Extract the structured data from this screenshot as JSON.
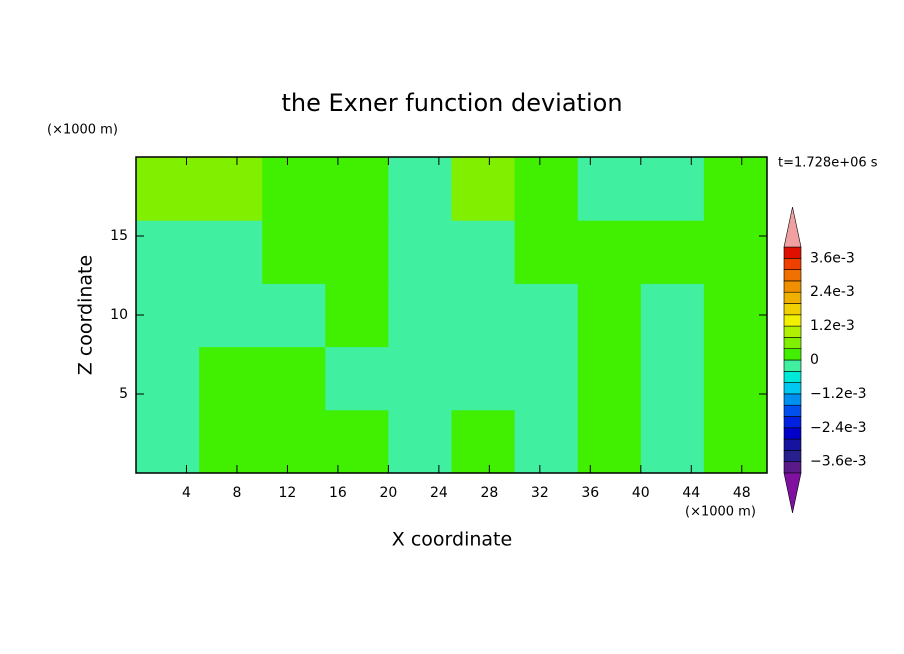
{
  "chart_data": {
    "type": "contour",
    "title": "the Exner function deviation",
    "x_label": "X coordinate",
    "y_label": "Z coordinate",
    "x_unit": "(×1000 m)",
    "y_unit": "(×1000 m)",
    "time_label": "t=1.728e+06 s",
    "xlim": [
      0,
      50
    ],
    "ylim": [
      0,
      20
    ],
    "xticks": [
      4,
      8,
      12,
      16,
      20,
      24,
      28,
      32,
      36,
      40,
      44,
      48
    ],
    "yticks": [
      5,
      10,
      15
    ],
    "x": [
      2.5,
      7.5,
      12.5,
      17.5,
      22.5,
      27.5,
      32.5,
      37.5,
      42.5,
      47.5
    ],
    "y": [
      2,
      6,
      10,
      14,
      18
    ],
    "z": [
      [
        -0.0002,
        0.0002,
        0.0002,
        0.0002,
        -0.0002,
        0.0002,
        -0.0002,
        0.0002,
        -0.0002,
        0.0002
      ],
      [
        -0.0002,
        0.0002,
        0.0002,
        -0.0002,
        -0.0002,
        -0.0002,
        -0.0002,
        0.0002,
        -0.0002,
        0.0002
      ],
      [
        -0.0002,
        -0.0002,
        -0.0002,
        0.0002,
        -0.0002,
        -0.0002,
        -0.0002,
        0.0002,
        -0.0002,
        0.0002
      ],
      [
        -0.0002,
        -0.0002,
        0.0002,
        0.0002,
        -0.0002,
        -0.0002,
        0.0002,
        0.0002,
        0.0002,
        0.0002
      ],
      [
        0.0006,
        0.0006,
        0.0002,
        0.0002,
        -0.0002,
        0.0006,
        0.0002,
        -0.0002,
        -0.0002,
        0.0002
      ]
    ],
    "levels": [
      -0.004,
      -0.0036,
      -0.0032,
      -0.0028,
      -0.0024,
      -0.002,
      -0.0016,
      -0.0012,
      -0.0008,
      -0.0004,
      0,
      0.0004,
      0.0008,
      0.0012,
      0.0016,
      0.002,
      0.0024,
      0.0028,
      0.0032,
      0.0036,
      0.004
    ],
    "colors": [
      "#5a1a8a",
      "#28208c",
      "#1414a0",
      "#0000c8",
      "#0022e0",
      "#0050f0",
      "#0090f0",
      "#00c8f0",
      "#00e8d8",
      "#40f0a0",
      "#40f000",
      "#80f000",
      "#b0f000",
      "#f0f000",
      "#f0d000",
      "#f0b000",
      "#f09000",
      "#f07000",
      "#f04000",
      "#e01000"
    ],
    "under_color": "#8010a0",
    "over_color": "#f0a0a0",
    "colorbar_ticks": [
      {
        "value": 0.0036,
        "label": "3.6e-3"
      },
      {
        "value": 0.0024,
        "label": "2.4e-3"
      },
      {
        "value": 0.0012,
        "label": "1.2e-3"
      },
      0,
      {
        "value": -0.0012,
        "label": "−1.2e-3"
      },
      {
        "value": -0.0024,
        "label": "−2.4e-3"
      },
      {
        "value": -0.0036,
        "label": "−3.6e-3"
      }
    ]
  }
}
